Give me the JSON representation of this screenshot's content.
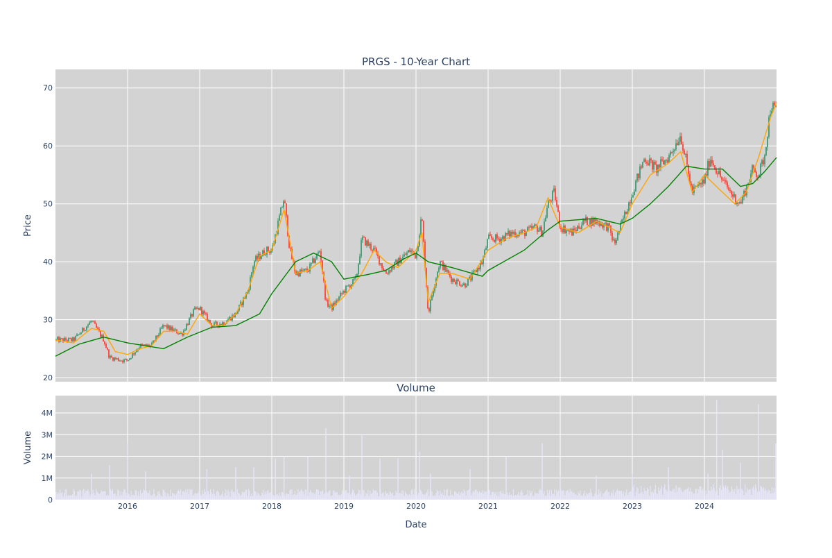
{
  "colors": {
    "plot_bg": "#d3d3d3",
    "grid": "#ffffff",
    "increasing": "#3d9970",
    "decreasing": "#ff4136",
    "ma_short": "#ffa500",
    "ma_long": "#008000",
    "volume": "#e6e6fa",
    "text": "#2a3f5f"
  },
  "chart_data": [
    {
      "type": "candlestick",
      "title": "PRGS - 10-Year Chart",
      "xlabel": "",
      "ylabel": "Price",
      "xlim": [
        2015.0,
        2025.0
      ],
      "ylim": [
        19.3,
        73.2
      ],
      "grid": true,
      "y_ticks": [
        20,
        30,
        40,
        50,
        60,
        70
      ],
      "x_ticks": [
        2016,
        2017,
        2018,
        2019,
        2020,
        2021,
        2022,
        2023,
        2024
      ],
      "series": [
        {
          "name": "close",
          "x": [
            2015.0,
            2015.25,
            2015.5,
            2015.67,
            2015.75,
            2015.92,
            2016.0,
            2016.17,
            2016.33,
            2016.5,
            2016.58,
            2016.75,
            2016.92,
            2017.0,
            2017.17,
            2017.33,
            2017.5,
            2017.67,
            2017.75,
            2017.92,
            2018.0,
            2018.17,
            2018.25,
            2018.33,
            2018.5,
            2018.67,
            2018.75,
            2018.83,
            2019.0,
            2019.17,
            2019.25,
            2019.42,
            2019.58,
            2019.75,
            2019.92,
            2020.0,
            2020.08,
            2020.17,
            2020.25,
            2020.33,
            2020.5,
            2020.67,
            2020.75,
            2020.92,
            2021.0,
            2021.17,
            2021.33,
            2021.5,
            2021.67,
            2021.75,
            2021.83,
            2021.92,
            2022.0,
            2022.17,
            2022.33,
            2022.5,
            2022.67,
            2022.75,
            2022.92,
            2023.0,
            2023.17,
            2023.33,
            2023.5,
            2023.67,
            2023.75,
            2023.83,
            2024.0,
            2024.08,
            2024.25,
            2024.42,
            2024.5,
            2024.67,
            2024.75,
            2024.83,
            2024.92,
            2025.0
          ],
          "values": [
            26.5,
            26.5,
            29.8,
            26.5,
            23.5,
            23,
            23,
            25.5,
            25.5,
            29,
            28.5,
            27.5,
            31.5,
            32,
            29,
            29.5,
            31,
            35,
            40,
            42,
            42,
            51,
            42,
            38,
            38.5,
            42,
            33,
            32,
            35,
            37,
            44,
            42,
            38,
            40,
            42,
            41,
            48,
            31,
            36,
            40,
            37,
            36,
            37,
            40,
            44,
            44,
            45,
            45,
            46,
            45,
            50,
            52,
            46,
            45,
            47,
            47,
            46,
            43,
            49,
            52,
            58,
            56,
            58,
            62,
            57,
            52,
            54,
            58,
            54,
            51,
            50,
            56,
            55,
            58,
            67,
            66
          ]
        },
        {
          "name": "moving average (short)",
          "x": [
            2015.0,
            2015.25,
            2015.5,
            2015.67,
            2015.83,
            2016.0,
            2016.17,
            2016.33,
            2016.5,
            2016.67,
            2016.83,
            2017.0,
            2017.17,
            2017.33,
            2017.5,
            2017.67,
            2017.83,
            2018.0,
            2018.17,
            2018.33,
            2018.5,
            2018.67,
            2018.83,
            2019.0,
            2019.25,
            2019.42,
            2019.58,
            2019.75,
            2020.0,
            2020.08,
            2020.17,
            2020.33,
            2020.5,
            2020.75,
            2021.0,
            2021.25,
            2021.5,
            2021.67,
            2021.83,
            2022.0,
            2022.25,
            2022.5,
            2022.67,
            2022.83,
            2023.0,
            2023.25,
            2023.5,
            2023.67,
            2023.83,
            2024.0,
            2024.25,
            2024.42,
            2024.58,
            2024.75,
            2024.92,
            2025.0
          ],
          "values": [
            26.5,
            26,
            28.5,
            28,
            24.5,
            24,
            25,
            25.5,
            28,
            28,
            27.5,
            31,
            29,
            29,
            31,
            35,
            41,
            42,
            49,
            38,
            38.5,
            40,
            32,
            34,
            38,
            42,
            40,
            39,
            42,
            45,
            33,
            38,
            38,
            37,
            42,
            44,
            45,
            46,
            51,
            46,
            45,
            47,
            46,
            45,
            50,
            55,
            57,
            59,
            52,
            55,
            52,
            50,
            52,
            58,
            65,
            67.5
          ]
        },
        {
          "name": "moving average (long)",
          "x": [
            2015.0,
            2015.33,
            2015.67,
            2016.0,
            2016.5,
            2016.83,
            2017.17,
            2017.5,
            2017.83,
            2018.0,
            2018.33,
            2018.58,
            2018.83,
            2019.0,
            2019.33,
            2019.58,
            2019.83,
            2020.0,
            2020.17,
            2020.5,
            2020.92,
            2021.0,
            2021.5,
            2021.83,
            2022.0,
            2022.5,
            2022.83,
            2023.0,
            2023.25,
            2023.5,
            2023.75,
            2024.0,
            2024.25,
            2024.5,
            2024.67,
            2024.83,
            2025.0
          ],
          "values": [
            23.7,
            25.8,
            27,
            26,
            25,
            27,
            28.7,
            29,
            31,
            34.5,
            40,
            41.5,
            40,
            37,
            37.8,
            38.5,
            40.5,
            41.5,
            40,
            39,
            37.5,
            38.5,
            42,
            45.5,
            47,
            47.5,
            46.5,
            47.5,
            50,
            53,
            56.5,
            56,
            56,
            53,
            53.5,
            55.5,
            58
          ]
        }
      ]
    },
    {
      "type": "bar",
      "title": "Volume",
      "xlabel": "Date",
      "ylabel": "Volume",
      "xlim": [
        2015.0,
        2025.0
      ],
      "ylim": [
        0,
        4800000
      ],
      "grid": true,
      "y_ticks": [
        0,
        1000000,
        2000000,
        3000000,
        4000000
      ],
      "y_tick_labels": [
        "0",
        "1M",
        "2M",
        "3M",
        "4M"
      ],
      "x_ticks": [
        2016,
        2017,
        2018,
        2019,
        2020,
        2021,
        2022,
        2023,
        2024
      ],
      "spikes": {
        "x": [
          2015.5,
          2015.75,
          2016.0,
          2016.25,
          2017.1,
          2017.5,
          2017.75,
          2018.05,
          2018.17,
          2018.5,
          2018.75,
          2019.08,
          2019.25,
          2019.5,
          2019.75,
          2020.05,
          2020.2,
          2020.75,
          2021.25,
          2021.75,
          2022.0,
          2022.5,
          2023.0,
          2023.5,
          2024.05,
          2024.17,
          2024.25,
          2024.5,
          2024.75,
          2025.0
        ],
        "values": [
          1200000,
          1600000,
          2600000,
          1300000,
          1400000,
          1500000,
          1500000,
          1900000,
          2000000,
          2000000,
          3300000,
          1100000,
          3000000,
          1900000,
          1900000,
          2200000,
          1200000,
          1400000,
          2000000,
          2600000,
          1100000,
          1100000,
          1200000,
          1500000,
          1200000,
          4600000,
          2300000,
          1700000,
          4400000,
          2600000
        ]
      }
    }
  ]
}
